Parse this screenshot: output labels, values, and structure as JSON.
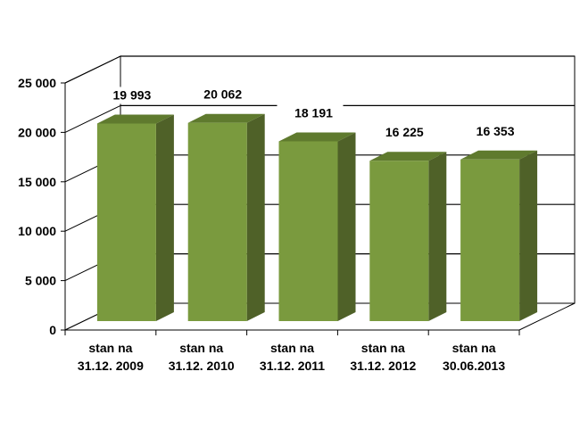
{
  "chart_data": {
    "type": "bar",
    "style": "3d-column",
    "categories": [
      [
        "stan na",
        "31.12. 2009"
      ],
      [
        "stan na",
        "31.12. 2010"
      ],
      [
        "stan na",
        "31.12. 2011"
      ],
      [
        "stan na",
        "31.12. 2012"
      ],
      [
        "stan na",
        "30.06.2013"
      ]
    ],
    "values": [
      19993,
      20062,
      18191,
      16225,
      16353
    ],
    "value_labels": [
      "19 993",
      "20 062",
      "18 191",
      "16 225",
      "16 353"
    ],
    "ylim": [
      0,
      25000
    ],
    "yticks": [
      0,
      5000,
      10000,
      15000,
      20000,
      25000
    ],
    "ytick_labels": [
      "0",
      "5 000",
      "10 000",
      "15 000",
      "20 000",
      "25 000"
    ],
    "grid": true,
    "legend": "none",
    "colors": {
      "bar_front": "#7a9a3e",
      "bar_side": "#4f6128",
      "bar_top": "#5f7a2e",
      "grid": "#000000"
    }
  }
}
